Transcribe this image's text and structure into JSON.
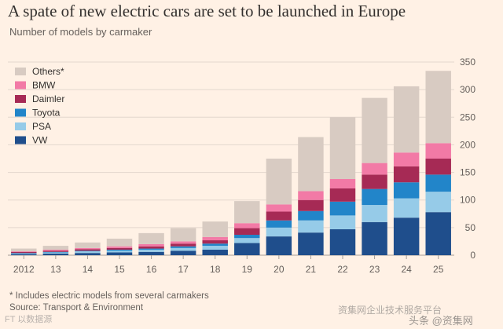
{
  "header": {
    "title": "A spate of new electric cars are set to be launched in Europe",
    "subtitle": "Number of models by carmaker"
  },
  "footer": {
    "note": "* Includes electric models from several carmakers",
    "source": "Source: Transport & Environment"
  },
  "watermark": {
    "line1": "资集网企业技术服务平台",
    "line2": "头条 @资集网",
    "logo": "FT 以数据源"
  },
  "chart_data": {
    "type": "bar",
    "stacked": true,
    "categories": [
      "2012",
      "13",
      "14",
      "15",
      "16",
      "17",
      "18",
      "19",
      "20",
      "21",
      "22",
      "23",
      "24",
      "25"
    ],
    "ylim": [
      0,
      350
    ],
    "yticks": [
      0,
      50,
      100,
      150,
      200,
      250,
      300,
      350
    ],
    "y_axis_side": "right",
    "legend_position": "top-left",
    "grid": true,
    "series": [
      {
        "name": "VW",
        "color": "#1f4e8c",
        "values": [
          2,
          3,
          4,
          5,
          6,
          8,
          10,
          22,
          34,
          41,
          47,
          60,
          68,
          78
        ]
      },
      {
        "name": "PSA",
        "color": "#96cbe8",
        "values": [
          1,
          2,
          3,
          3,
          4,
          5,
          7,
          9,
          16,
          22,
          25,
          31,
          35,
          37
        ]
      },
      {
        "name": "Toyota",
        "color": "#2285c9",
        "values": [
          1,
          1,
          1,
          2,
          2,
          3,
          4,
          6,
          13,
          17,
          25,
          29,
          29,
          31
        ]
      },
      {
        "name": "Daimler",
        "color": "#a62a55",
        "values": [
          2,
          2,
          3,
          3,
          4,
          5,
          6,
          12,
          16,
          20,
          24,
          26,
          29,
          29
        ]
      },
      {
        "name": "BMW",
        "color": "#f27aa6",
        "values": [
          1,
          2,
          2,
          3,
          4,
          4,
          6,
          9,
          13,
          16,
          17,
          21,
          25,
          28
        ]
      },
      {
        "name": "Others*",
        "color": "#d8cbc2",
        "values": [
          5,
          7,
          10,
          14,
          20,
          24,
          28,
          40,
          83,
          98,
          112,
          118,
          120,
          131
        ]
      }
    ]
  }
}
